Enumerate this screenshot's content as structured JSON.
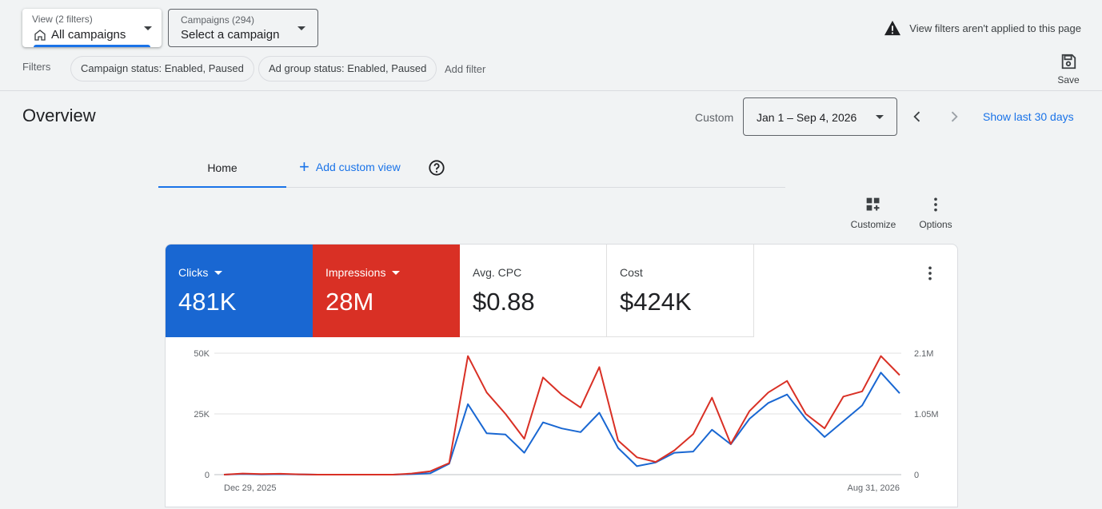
{
  "view_select": {
    "label": "View (2 filters)",
    "value": "All campaigns"
  },
  "campaign_select": {
    "label": "Campaigns (294)",
    "value": "Select a campaign"
  },
  "warning": {
    "text": "View filters aren't applied to this page"
  },
  "filters": {
    "label": "Filters",
    "chips": [
      "Campaign status: Enabled, Paused",
      "Ad group status: Enabled, Paused"
    ],
    "add_label": "Add filter"
  },
  "save": {
    "label": "Save"
  },
  "overview": {
    "title": "Overview",
    "custom_label": "Custom",
    "date_range": "Jan 1 – Sep 4, 2026",
    "show_last_30": "Show last 30 days"
  },
  "tabs": {
    "home": "Home",
    "add_custom_view": "Add custom view"
  },
  "toolbar": {
    "customize": "Customize",
    "options": "Options"
  },
  "metrics": [
    {
      "name": "Clicks",
      "value": "481K",
      "color": "#1967d2"
    },
    {
      "name": "Impressions",
      "value": "28M",
      "color": "#d93025"
    },
    {
      "name": "Avg. CPC",
      "value": "$0.88"
    },
    {
      "name": "Cost",
      "value": "$424K"
    }
  ],
  "icons": [
    "home-icon",
    "caret-down-icon",
    "warning-icon",
    "save-icon",
    "chevron-left-icon",
    "chevron-right-icon",
    "plus-icon",
    "help-icon",
    "customize-icon",
    "more-vert-icon"
  ],
  "chart_data": {
    "type": "line",
    "x_labels": [
      "Dec 29, 2025",
      "Aug 31, 2026"
    ],
    "left_axis": {
      "ticks": [
        "50K",
        "25K",
        "0"
      ],
      "ylim": [
        0,
        50000
      ]
    },
    "right_axis": {
      "ticks": [
        "2.1M",
        "1.05M",
        "0"
      ],
      "ylim": [
        0,
        2100000
      ]
    },
    "grid": true,
    "series": [
      {
        "name": "Clicks",
        "axis": "left",
        "color": "#1967d2",
        "values": [
          0,
          300,
          100,
          200,
          100,
          0,
          0,
          0,
          0,
          0,
          200,
          600,
          4500,
          29000,
          17000,
          16500,
          9000,
          21500,
          19000,
          17500,
          25500,
          11000,
          3500,
          5000,
          9000,
          9500,
          18500,
          12500,
          23000,
          29500,
          33000,
          23000,
          15500,
          22000,
          28500,
          42000,
          33500
        ]
      },
      {
        "name": "Impressions",
        "axis": "right",
        "color": "#d93025",
        "values": [
          0,
          20000,
          10000,
          15000,
          5000,
          0,
          0,
          0,
          0,
          0,
          20000,
          60000,
          200000,
          2050000,
          1420000,
          1050000,
          620000,
          1680000,
          1380000,
          1160000,
          1860000,
          590000,
          300000,
          220000,
          420000,
          700000,
          1330000,
          530000,
          1100000,
          1420000,
          1620000,
          1050000,
          800000,
          1350000,
          1440000,
          2050000,
          1720000
        ]
      }
    ]
  }
}
